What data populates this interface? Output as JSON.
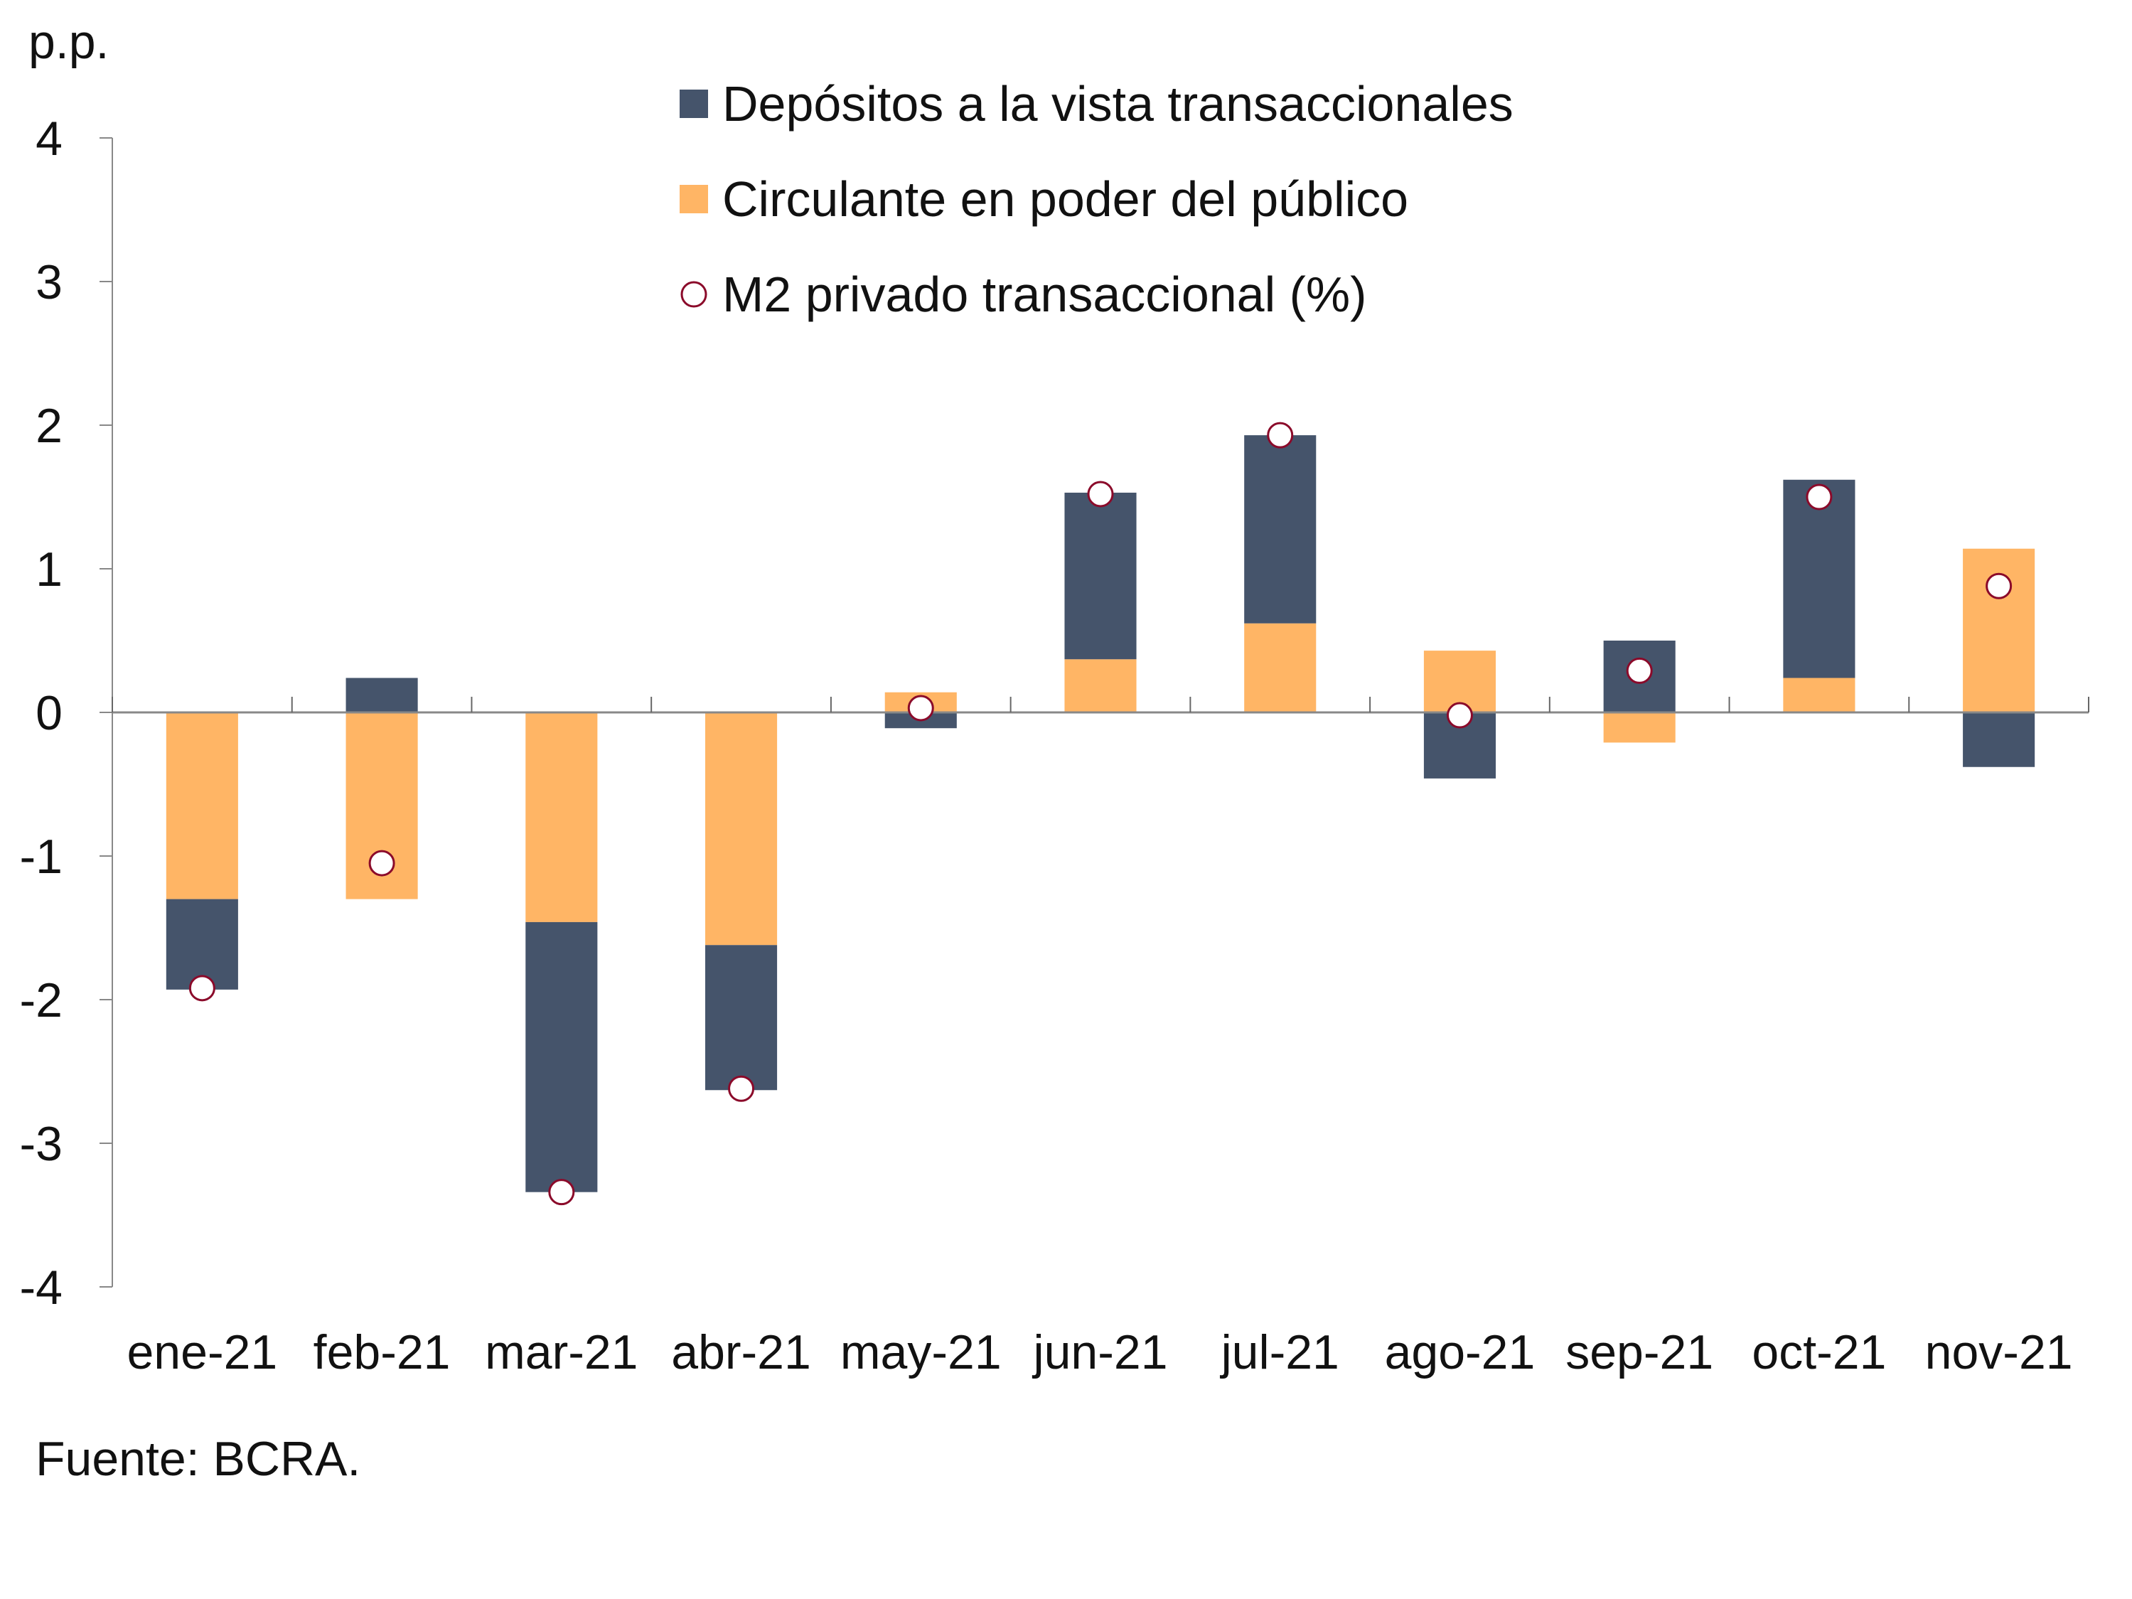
{
  "chart_data": {
    "type": "bar",
    "stacked": true,
    "ylabel": "p.p.",
    "ylim": [
      -4,
      4
    ],
    "yticks": [
      "4",
      "3",
      "2",
      "1",
      "0",
      "-1",
      "-2",
      "-3",
      "-4"
    ],
    "categories": [
      "ene-21",
      "feb-21",
      "mar-21",
      "abr-21",
      "may-21",
      "jun-21",
      "jul-21",
      "ago-21",
      "sep-21",
      "oct-21",
      "nov-21"
    ],
    "series": [
      {
        "name": "Depósitos a la vista transaccionales",
        "kind": "bar",
        "color": "#45546B",
        "values": [
          -0.63,
          0.24,
          -1.88,
          -1.01,
          -0.11,
          1.16,
          1.31,
          -0.46,
          0.5,
          1.38,
          -0.38
        ]
      },
      {
        "name": "Circulante en poder del público",
        "kind": "bar",
        "color": "#FFB565",
        "values": [
          -1.3,
          -1.3,
          -1.46,
          -1.62,
          0.14,
          0.37,
          0.62,
          0.43,
          -0.21,
          0.24,
          1.14
        ]
      },
      {
        "name": "M2 privado transaccional (%)",
        "kind": "marker",
        "color": "#8B0A2A",
        "values": [
          -1.92,
          -1.05,
          -3.34,
          -2.62,
          0.03,
          1.52,
          1.93,
          -0.02,
          0.29,
          1.5,
          0.88
        ]
      }
    ],
    "grid": false,
    "legend": "top-center",
    "source": "Fuente: BCRA."
  }
}
